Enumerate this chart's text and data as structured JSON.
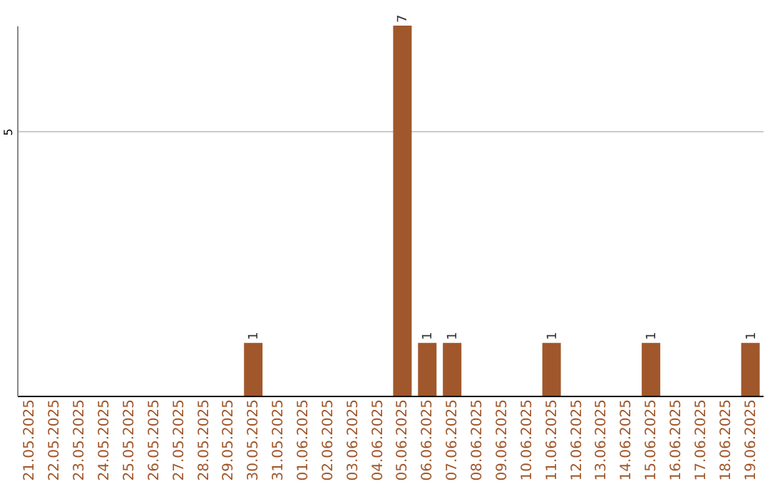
{
  "chart_data": {
    "type": "bar",
    "categories": [
      "21.05.2025",
      "22.05.2025",
      "23.05.2025",
      "24.05.2025",
      "25.05.2025",
      "26.05.2025",
      "27.05.2025",
      "28.05.2025",
      "29.05.2025",
      "30.05.2025",
      "31.05.2025",
      "01.06.2025",
      "02.06.2025",
      "03.06.2025",
      "04.06.2025",
      "05.06.2025",
      "06.06.2025",
      "07.06.2025",
      "08.06.2025",
      "09.06.2025",
      "10.06.2025",
      "11.06.2025",
      "12.06.2025",
      "13.06.2025",
      "14.06.2025",
      "15.06.2025",
      "16.06.2025",
      "17.06.2025",
      "18.06.2025",
      "19.06.2025"
    ],
    "values": [
      0,
      0,
      0,
      0,
      0,
      0,
      0,
      0,
      0,
      1,
      0,
      0,
      0,
      0,
      0,
      7,
      1,
      1,
      0,
      0,
      0,
      1,
      0,
      0,
      0,
      1,
      0,
      0,
      0,
      1
    ],
    "value_labels": [
      null,
      null,
      null,
      null,
      null,
      null,
      null,
      null,
      null,
      "1",
      null,
      null,
      null,
      null,
      null,
      "7",
      "1",
      "1",
      null,
      null,
      null,
      "1",
      null,
      null,
      null,
      "1",
      null,
      null,
      null,
      "1"
    ],
    "color": "#a0572b",
    "ylim": [
      0,
      7
    ],
    "yticks": [
      5
    ],
    "grid": "y"
  }
}
